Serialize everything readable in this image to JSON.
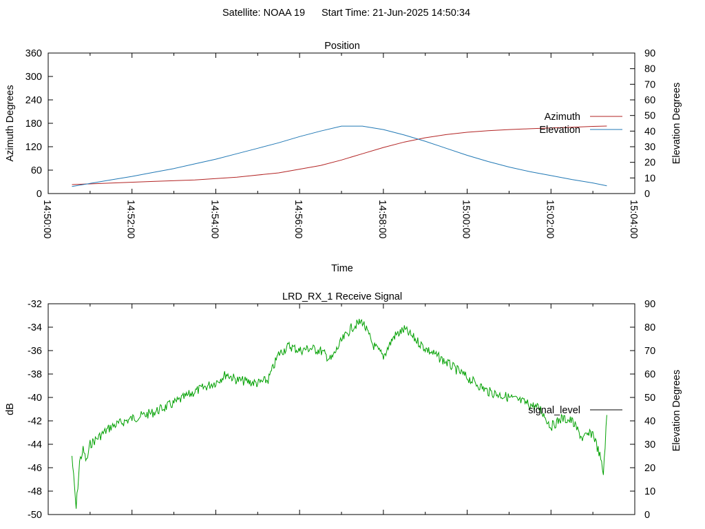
{
  "header": {
    "satellite": "Satellite: NOAA 19",
    "start_time": "Start Time: 21-Jun-2025 14:50:34"
  },
  "chart_data": [
    {
      "type": "line",
      "title": "Position",
      "xlabel": "Time",
      "ylabel": "Azimuth Degrees",
      "y2label": "Elevation Degrees",
      "xlim": [
        "14:50:00",
        "15:04:00"
      ],
      "x_ticks": [
        "14:50:00",
        "14:52:00",
        "14:54:00",
        "14:56:00",
        "14:58:00",
        "15:00:00",
        "15:02:00",
        "15:04:00"
      ],
      "ylim": [
        0,
        360
      ],
      "y_ticks": [
        0,
        60,
        120,
        180,
        240,
        300,
        360
      ],
      "y2lim": [
        0,
        90
      ],
      "y2_ticks": [
        0,
        10,
        20,
        30,
        40,
        50,
        60,
        70,
        80,
        90
      ],
      "grid": false,
      "legend_position": "right",
      "series": [
        {
          "name": "Azimuth",
          "axis": "left",
          "color": "#b22222",
          "x": [
            "14:50:34",
            "14:51:30",
            "14:52:30",
            "14:53:30",
            "14:54:30",
            "14:55:30",
            "14:56:30",
            "14:57:00",
            "14:57:30",
            "14:58:00",
            "14:58:30",
            "14:59:00",
            "14:59:30",
            "15:00:00",
            "15:00:30",
            "15:01:00",
            "15:01:30",
            "15:02:00",
            "15:02:30",
            "15:03:00",
            "15:03:20"
          ],
          "values": [
            23,
            27,
            31,
            35,
            42,
            53,
            72,
            86,
            102,
            118,
            132,
            143,
            151,
            157,
            161,
            164,
            166,
            168,
            170,
            172,
            173
          ]
        },
        {
          "name": "Elevation",
          "axis": "right",
          "color": "#1f77b4",
          "x": [
            "14:50:34",
            "14:51:00",
            "14:51:30",
            "14:52:00",
            "14:52:30",
            "14:53:00",
            "14:53:30",
            "14:54:00",
            "14:54:30",
            "14:55:00",
            "14:55:30",
            "14:56:00",
            "14:56:30",
            "14:57:00",
            "14:57:30",
            "14:58:00",
            "14:58:30",
            "14:59:00",
            "14:59:30",
            "15:00:00",
            "15:00:30",
            "15:01:00",
            "15:01:30",
            "15:02:00",
            "15:02:30",
            "15:03:00",
            "15:03:20"
          ],
          "values": [
            4.5,
            6.5,
            8.8,
            11.0,
            13.5,
            16.0,
            19.0,
            22.0,
            25.5,
            29.0,
            32.5,
            36.5,
            40.0,
            43.2,
            43.2,
            41.0,
            37.5,
            33.5,
            29.0,
            24.5,
            20.5,
            17.0,
            14.0,
            11.5,
            9.0,
            6.8,
            5.0
          ]
        }
      ]
    },
    {
      "type": "line",
      "title": "LRD_RX_1 Receive Signal",
      "ylabel": "dB",
      "y2label": "Elevation Degrees",
      "xlim": [
        "14:50:00",
        "15:04:00"
      ],
      "ylim": [
        -50,
        -32
      ],
      "y_ticks": [
        -50,
        -48,
        -46,
        -44,
        -42,
        -40,
        -38,
        -36,
        -34,
        -32
      ],
      "y2lim": [
        0,
        90
      ],
      "y2_ticks": [
        0,
        10,
        20,
        30,
        40,
        50,
        60,
        70,
        80,
        90
      ],
      "grid": false,
      "legend_position": "right",
      "series": [
        {
          "name": "signal_level",
          "color": "#00a000",
          "x": [
            "14:50:34",
            "14:50:40",
            "14:50:45",
            "14:50:50",
            "14:50:55",
            "14:51:00",
            "14:51:10",
            "14:51:20",
            "14:51:30",
            "14:52:00",
            "14:52:30",
            "14:53:00",
            "14:53:30",
            "14:54:00",
            "14:54:15",
            "14:54:30",
            "14:55:00",
            "14:55:15",
            "14:55:30",
            "14:55:45",
            "14:56:00",
            "14:56:15",
            "14:56:30",
            "14:56:45",
            "14:57:00",
            "14:57:15",
            "14:57:30",
            "14:57:45",
            "14:58:00",
            "14:58:15",
            "14:58:30",
            "14:59:00",
            "14:59:30",
            "15:00:00",
            "15:00:30",
            "15:01:00",
            "15:01:30",
            "15:01:45",
            "15:02:00",
            "15:02:15",
            "15:02:30",
            "15:02:45",
            "15:03:00",
            "15:03:10",
            "15:03:15",
            "15:03:20"
          ],
          "values": [
            -45.0,
            -49.5,
            -45.5,
            -44.5,
            -45.5,
            -44.0,
            -43.5,
            -43.0,
            -42.5,
            -41.8,
            -41.3,
            -40.5,
            -39.5,
            -38.7,
            -38.0,
            -38.5,
            -38.8,
            -38.5,
            -36.3,
            -35.6,
            -36.0,
            -35.8,
            -36.0,
            -36.8,
            -35.2,
            -34.0,
            -33.5,
            -35.5,
            -36.5,
            -34.8,
            -34.2,
            -35.8,
            -37.0,
            -38.3,
            -39.5,
            -40.0,
            -40.6,
            -41.0,
            -42.5,
            -41.8,
            -42.0,
            -43.5,
            -43.0,
            -45.0,
            -46.5,
            -41.5
          ]
        }
      ]
    }
  ]
}
